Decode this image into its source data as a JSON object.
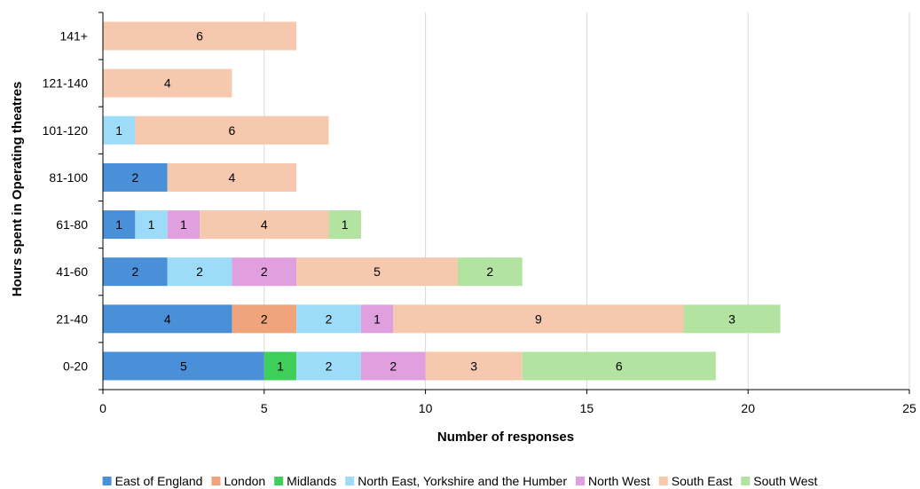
{
  "chart_data": {
    "type": "bar",
    "orientation": "horizontal",
    "stacked": true,
    "xlabel": "Number of responses",
    "ylabel": "Hours spent in Operating theatres",
    "xlim": [
      0,
      25
    ],
    "x_ticks": [
      0,
      5,
      10,
      15,
      20,
      25
    ],
    "grid": "vertical",
    "legend_position": "bottom",
    "categories": [
      "0-20",
      "21-40",
      "41-60",
      "61-80",
      "81-100",
      "101-120",
      "121-140",
      "141+"
    ],
    "series": [
      {
        "name": "East of England",
        "color": "#4a90d9",
        "values": [
          5,
          4,
          2,
          1,
          2,
          0,
          0,
          0
        ]
      },
      {
        "name": "London",
        "color": "#f0a47c",
        "values": [
          0,
          2,
          0,
          0,
          0,
          0,
          0,
          0
        ]
      },
      {
        "name": "Midlands",
        "color": "#3ecf5a",
        "values": [
          1,
          0,
          0,
          0,
          0,
          0,
          0,
          0
        ]
      },
      {
        "name": "North East, Yorkshire and the Humber",
        "color": "#9ddcf8",
        "values": [
          2,
          2,
          2,
          1,
          0,
          1,
          0,
          0
        ]
      },
      {
        "name": "North West",
        "color": "#e0a0e0",
        "values": [
          2,
          1,
          2,
          1,
          0,
          0,
          0,
          0
        ]
      },
      {
        "name": "South East",
        "color": "#f6c8ae",
        "values": [
          3,
          9,
          5,
          4,
          4,
          6,
          4,
          6
        ]
      },
      {
        "name": "South West",
        "color": "#b2e3a0",
        "values": [
          6,
          3,
          2,
          1,
          0,
          0,
          0,
          0
        ]
      }
    ]
  }
}
